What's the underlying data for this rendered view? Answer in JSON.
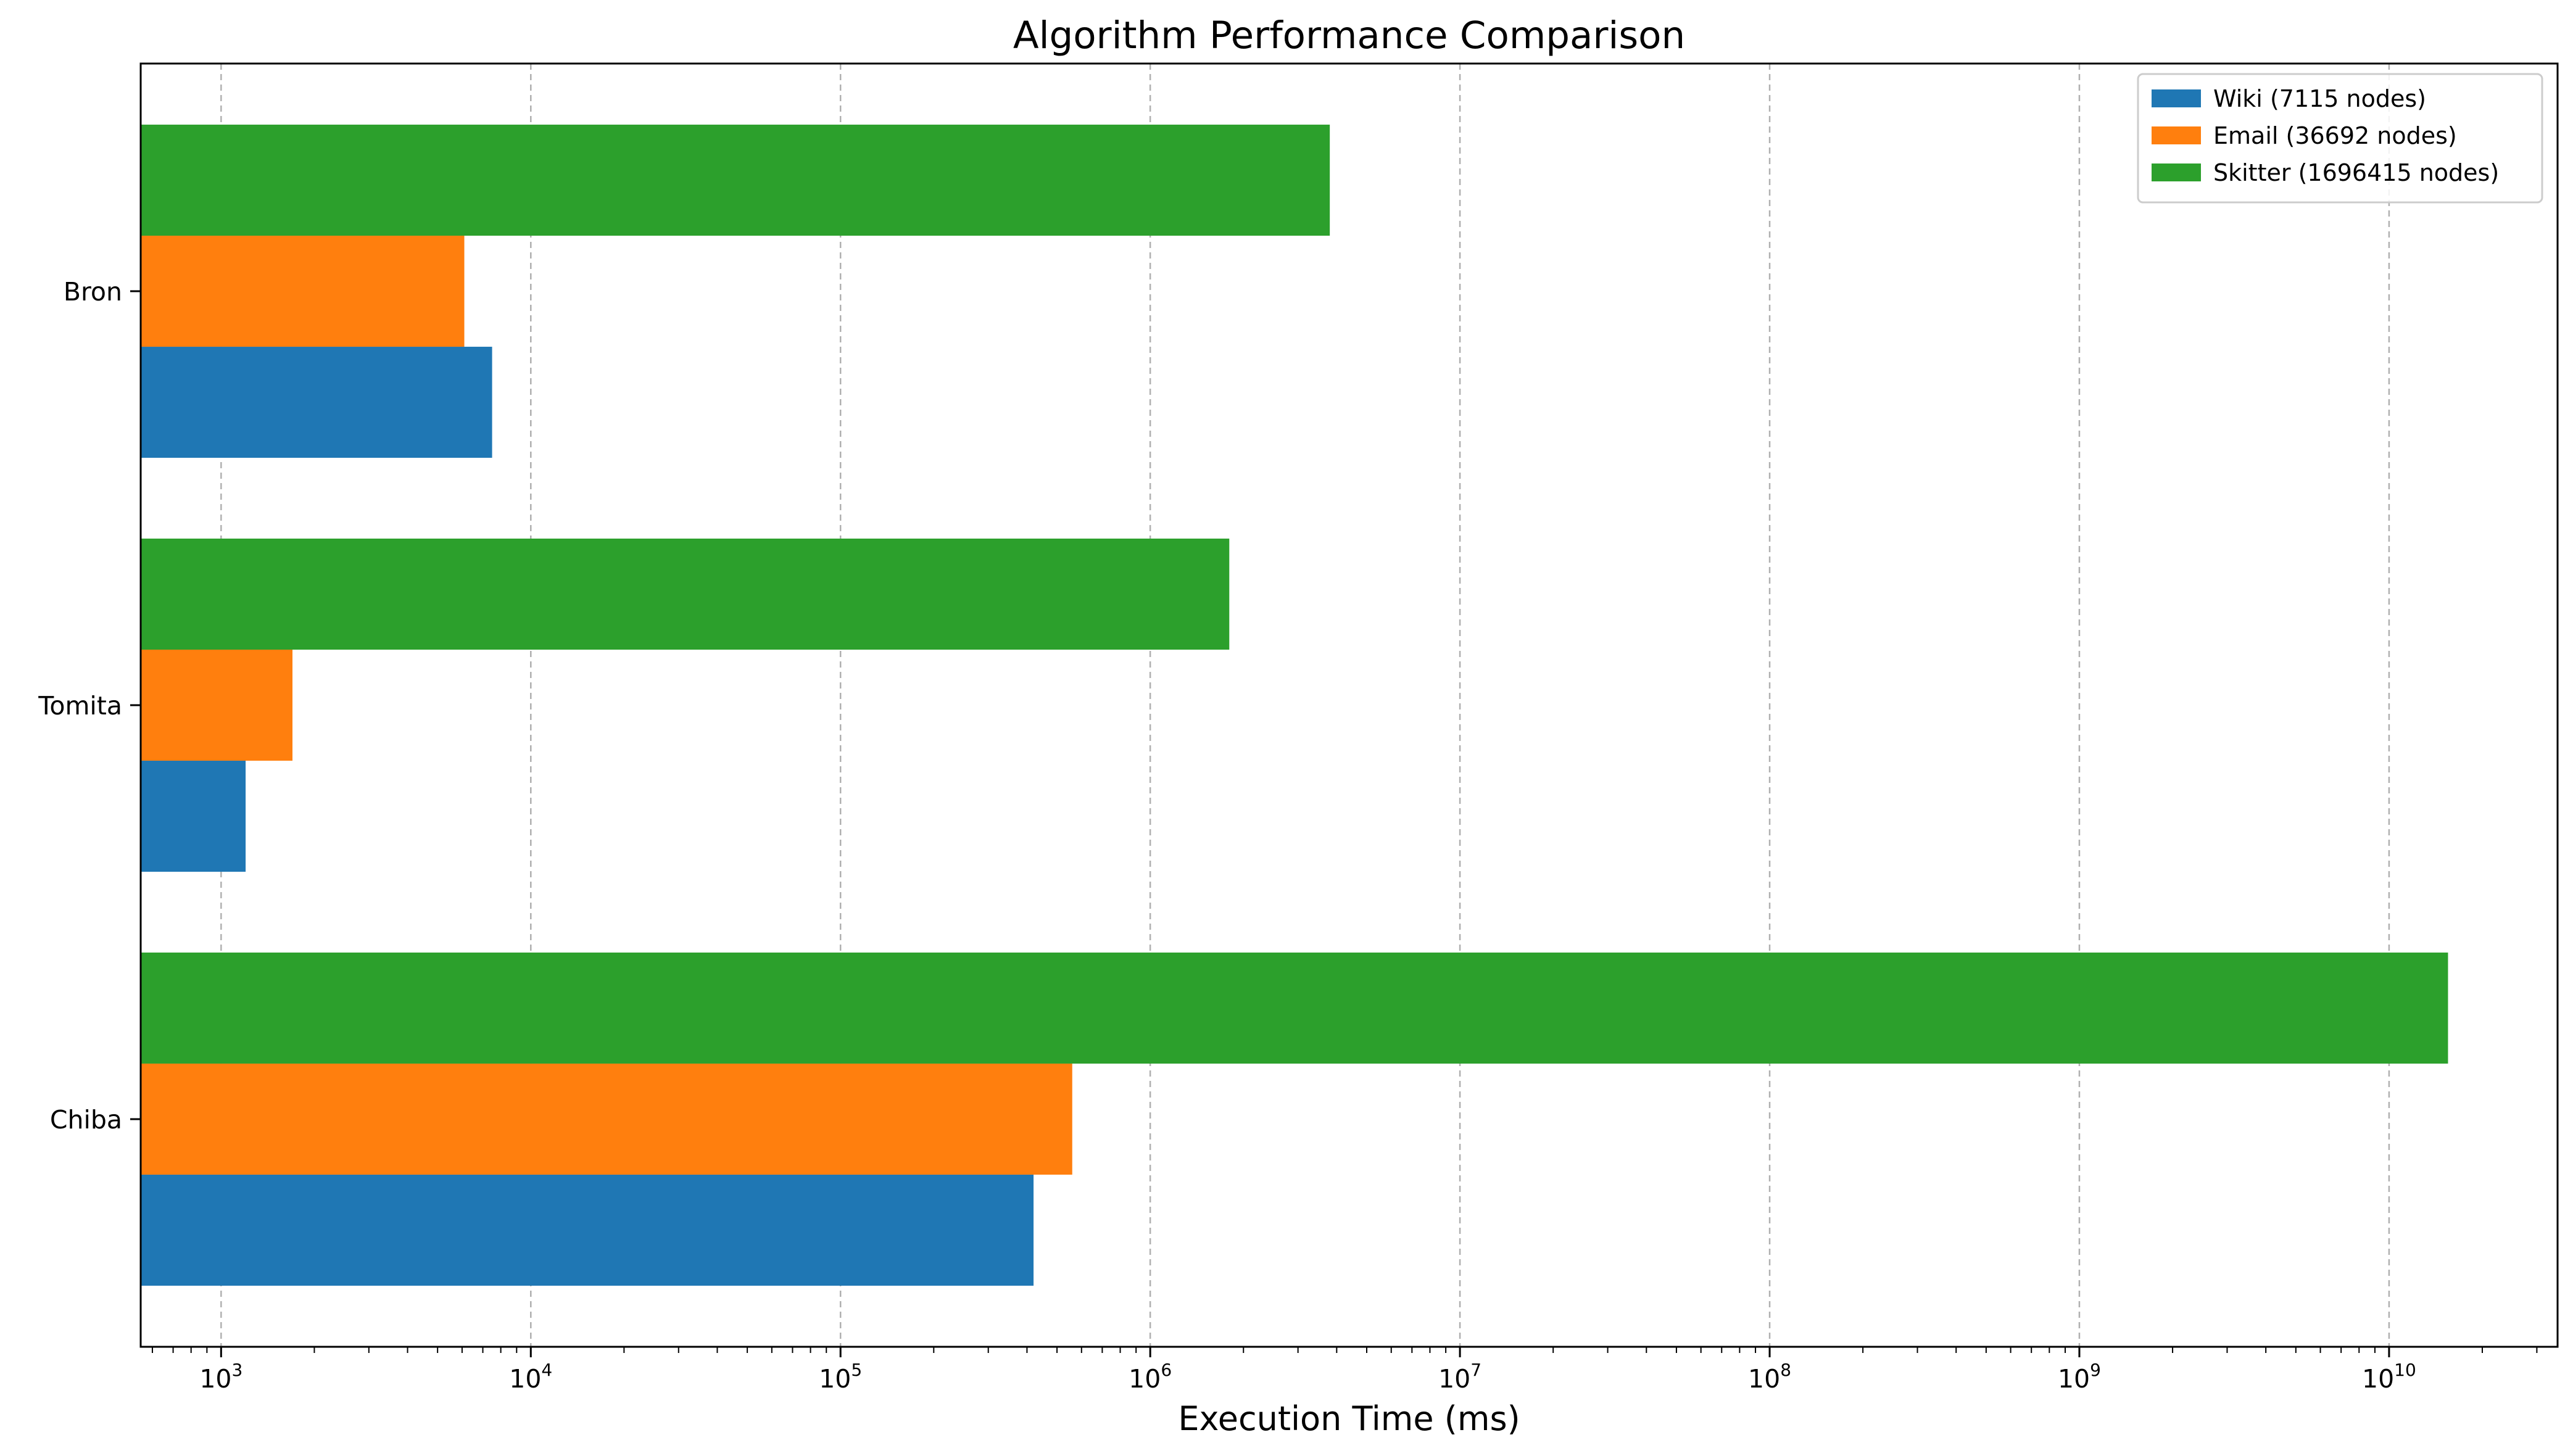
{
  "chart_data": {
    "type": "bar",
    "orientation": "horizontal",
    "title": "Algorithm Performance Comparison",
    "xlabel": "Execution Time (ms)",
    "ylabel": "",
    "xscale": "log",
    "xlim": [
      550,
      35000000000
    ],
    "grid": "x-major-dashed",
    "legend_position": "top-right",
    "categories": [
      "Chiba",
      "Tomita",
      "Bron"
    ],
    "x_ticks": [
      {
        "base": "10",
        "exp": "3",
        "value": 1000
      },
      {
        "base": "10",
        "exp": "4",
        "value": 10000
      },
      {
        "base": "10",
        "exp": "5",
        "value": 100000
      },
      {
        "base": "10",
        "exp": "6",
        "value": 1000000
      },
      {
        "base": "10",
        "exp": "7",
        "value": 10000000
      },
      {
        "base": "10",
        "exp": "8",
        "value": 100000000
      },
      {
        "base": "10",
        "exp": "9",
        "value": 1000000000
      },
      {
        "base": "10",
        "exp": "10",
        "value": 10000000000
      }
    ],
    "series": [
      {
        "name": "Wiki (7115 nodes)",
        "color": "#1f77b4",
        "values": [
          420000,
          1200,
          7500
        ]
      },
      {
        "name": "Email (36692 nodes)",
        "color": "#ff7f0e",
        "values": [
          560000,
          1700,
          6100
        ]
      },
      {
        "name": "Skitter (1696415 nodes)",
        "color": "#2ca02c",
        "values": [
          15500000000,
          1800000,
          3800000
        ]
      }
    ]
  }
}
